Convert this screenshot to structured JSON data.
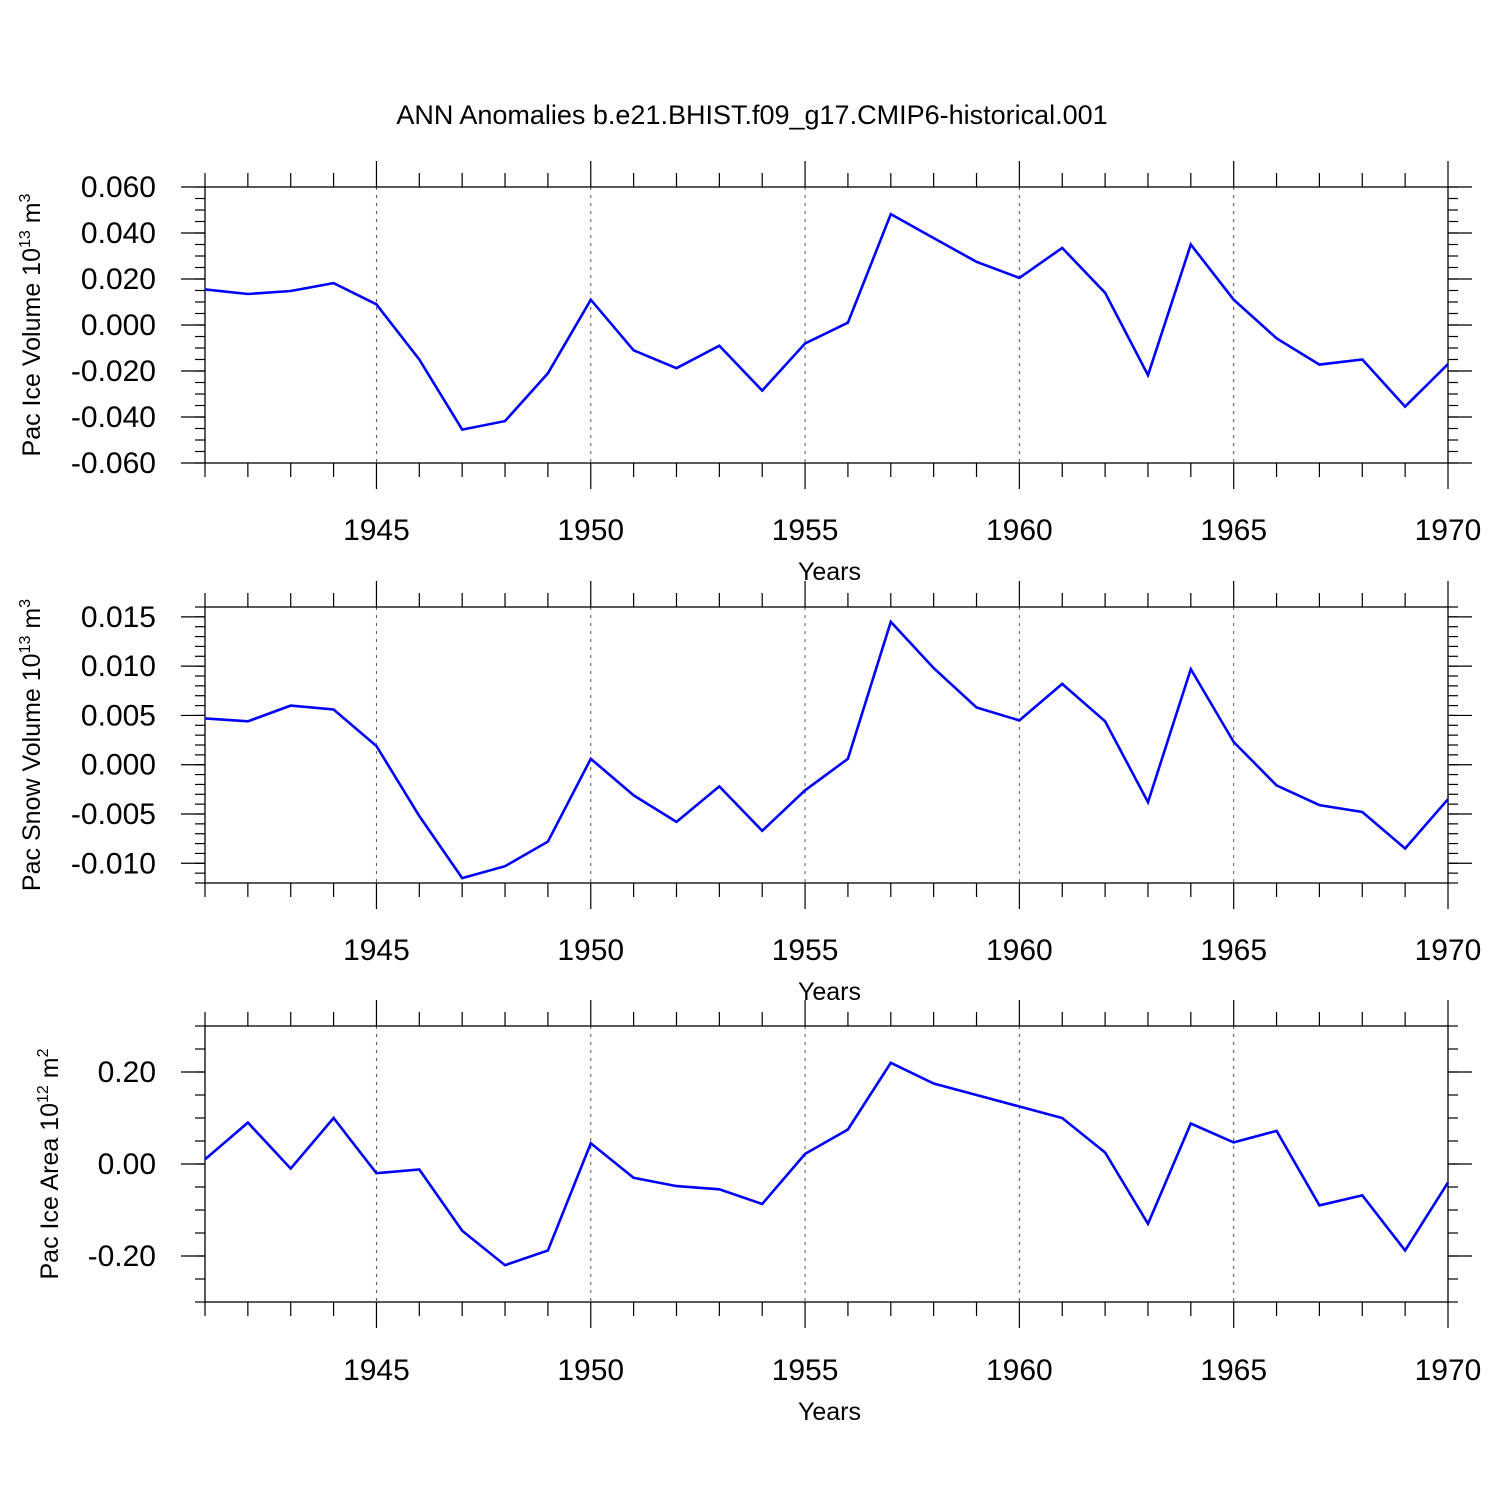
{
  "title": "ANN Anomalies b.e21.BHIST.f09_g17.CMIP6-historical.001",
  "colors": {
    "series": "#0000ff",
    "axis": "#000000",
    "grid": "#555555"
  },
  "chart_data": [
    {
      "type": "line",
      "ylabel_main": "Pac Ice Volume 10",
      "ylabel_exp": "13",
      "ylabel_unit": " m",
      "ylabel_unit_exp": "3",
      "xlabel": "Years",
      "xlim": [
        1941,
        1970
      ],
      "ylim": [
        -0.06,
        0.06
      ],
      "xticks": [
        "1945",
        "1950",
        "1955",
        "1960",
        "1965",
        "1970"
      ],
      "yticks": [
        "0.060",
        "0.040",
        "0.020",
        "0.000",
        "-0.020",
        "-0.040",
        "-0.060"
      ],
      "grid": "dashed vertical at major x ticks",
      "x": [
        1941,
        1942,
        1943,
        1944,
        1945,
        1946,
        1947,
        1948,
        1949,
        1950,
        1951,
        1952,
        1953,
        1954,
        1955,
        1956,
        1957,
        1958,
        1959,
        1960,
        1961,
        1962,
        1963,
        1964,
        1965,
        1966,
        1967,
        1968,
        1969,
        1970
      ],
      "values": [
        0.0155,
        0.0135,
        0.0148,
        0.0182,
        0.009,
        -0.015,
        -0.0455,
        -0.0418,
        -0.021,
        0.011,
        -0.011,
        -0.0188,
        -0.009,
        -0.0285,
        -0.008,
        0.001,
        0.0482,
        0.0378,
        0.0275,
        0.0205,
        0.0335,
        0.014,
        -0.0218,
        0.035,
        0.011,
        -0.0058,
        -0.0172,
        -0.015,
        -0.0355,
        -0.017
      ]
    },
    {
      "type": "line",
      "ylabel_main": "Pac Snow Volume 10",
      "ylabel_exp": "13",
      "ylabel_unit": " m",
      "ylabel_unit_exp": "3",
      "xlabel": "Years",
      "xlim": [
        1941,
        1970
      ],
      "ylim": [
        -0.012,
        0.016
      ],
      "xticks": [
        "1945",
        "1950",
        "1955",
        "1960",
        "1965",
        "1970"
      ],
      "yticks": [
        "0.015",
        "0.010",
        "0.005",
        "0.000",
        "-0.005",
        "-0.010"
      ],
      "grid": "dashed vertical at major x ticks",
      "x": [
        1941,
        1942,
        1943,
        1944,
        1945,
        1946,
        1947,
        1948,
        1949,
        1950,
        1951,
        1952,
        1953,
        1954,
        1955,
        1956,
        1957,
        1958,
        1959,
        1960,
        1961,
        1962,
        1963,
        1964,
        1965,
        1966,
        1967,
        1968,
        1969,
        1970
      ],
      "values": [
        0.0047,
        0.0044,
        0.006,
        0.0056,
        0.0019,
        -0.0052,
        -0.0115,
        -0.0103,
        -0.0078,
        0.0006,
        -0.0031,
        -0.0058,
        -0.0022,
        -0.0067,
        -0.0026,
        0.0006,
        0.0145,
        0.0098,
        0.0058,
        0.0045,
        0.0082,
        0.0044,
        -0.0038,
        0.0097,
        0.0023,
        -0.0021,
        -0.0041,
        -0.0048,
        -0.0085,
        -0.0035
      ]
    },
    {
      "type": "line",
      "ylabel_main": "Pac Ice Area 10",
      "ylabel_exp": "12",
      "ylabel_unit": " m",
      "ylabel_unit_exp": "2",
      "xlabel": "Years",
      "xlim": [
        1941,
        1970
      ],
      "ylim": [
        -0.3,
        0.3
      ],
      "xticks": [
        "1945",
        "1950",
        "1955",
        "1960",
        "1965",
        "1970"
      ],
      "yticks": [
        "0.20",
        "0.00",
        "-0.20"
      ],
      "grid": "dashed vertical at major x ticks",
      "x": [
        1941,
        1942,
        1943,
        1944,
        1945,
        1946,
        1947,
        1948,
        1949,
        1950,
        1951,
        1952,
        1953,
        1954,
        1955,
        1956,
        1957,
        1958,
        1959,
        1960,
        1961,
        1962,
        1963,
        1964,
        1965,
        1966,
        1967,
        1968,
        1969,
        1970
      ],
      "values": [
        0.01,
        0.09,
        -0.01,
        0.1,
        -0.02,
        -0.012,
        -0.145,
        -0.22,
        -0.188,
        0.045,
        -0.03,
        -0.048,
        -0.055,
        -0.087,
        0.022,
        0.075,
        0.22,
        0.175,
        0.15,
        0.125,
        0.1,
        0.025,
        -0.13,
        0.088,
        0.047,
        0.072,
        -0.09,
        -0.068,
        -0.188,
        -0.04
      ]
    }
  ]
}
